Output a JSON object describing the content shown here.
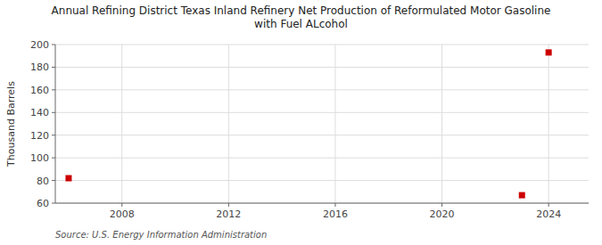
{
  "chart_data": {
    "type": "scatter",
    "title": "Annual Refining District Texas Inland Refinery Net Production of Reformulated Motor Gasoline\nwith Fuel ALcohol",
    "y_label": "Thousand Barrels",
    "annotations": [
      "Source: U.S. Energy Information Administration"
    ],
    "x": [
      2006,
      2023,
      2024
    ],
    "values": [
      82,
      67,
      193
    ],
    "color": "#cc0000",
    "marker": "square",
    "xlim": [
      2005.5,
      2025.5
    ],
    "ylim": [
      60,
      200
    ],
    "xticks": [
      2008,
      2012,
      2016,
      2020,
      2024
    ],
    "yticks": [
      60,
      80,
      100,
      120,
      140,
      160,
      180,
      200
    ],
    "grid": true
  }
}
